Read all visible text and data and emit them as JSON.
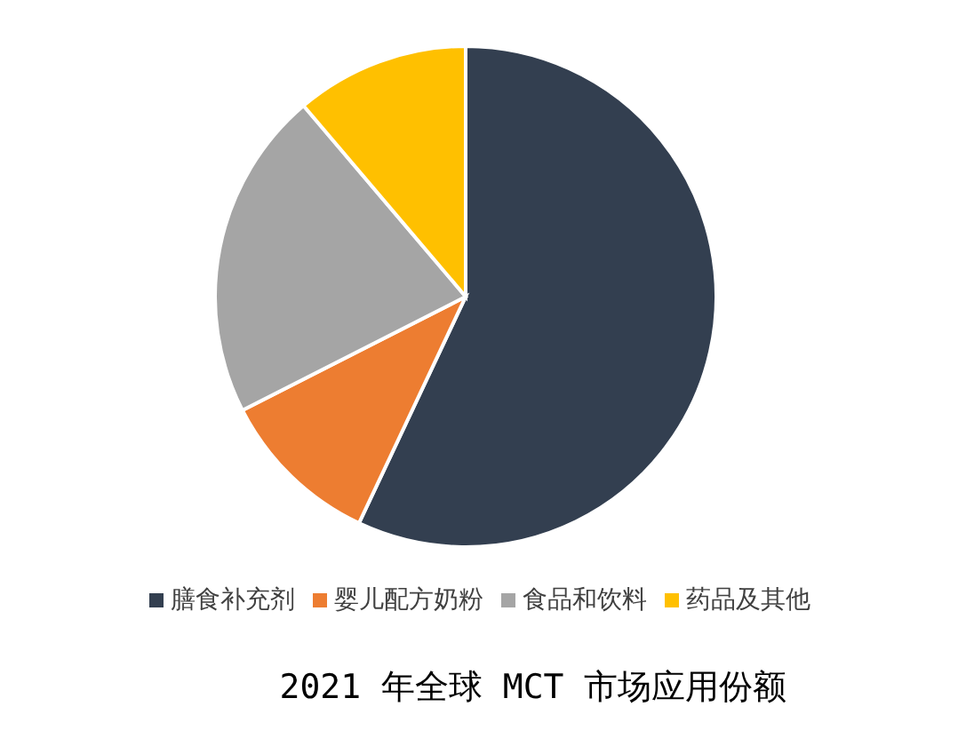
{
  "chart_data": {
    "type": "pie",
    "title": "2021 年全球 MCT 市场应用份额",
    "categories": [
      "膳食补充剂",
      "婴儿配方奶粉",
      "食品和饮料",
      "药品及其他"
    ],
    "values": [
      57,
      10.5,
      21.3,
      11.2
    ],
    "colors": [
      "#333f50",
      "#ed7d31",
      "#a5a5a5",
      "#ffc000"
    ],
    "legend": "bottom"
  }
}
